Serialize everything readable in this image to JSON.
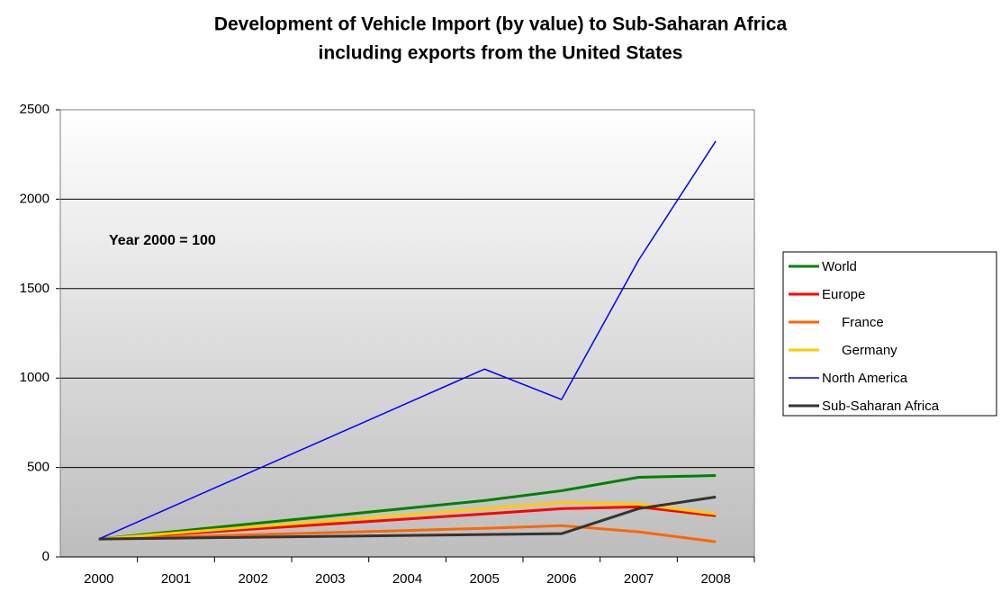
{
  "chart_data": {
    "type": "line",
    "title": [
      "Development of Vehicle Import (by value) to Sub-Saharan Africa",
      "including exports from the United States"
    ],
    "annotation": "Year 2000 = 100",
    "categories": [
      "2000",
      "2001",
      "2002",
      "2003",
      "2004",
      "2005",
      "2006",
      "2007",
      "2008"
    ],
    "series": [
      {
        "name": "World",
        "color": "#008000",
        "width": 3,
        "values": [
          100,
          143,
          186,
          229,
          272,
          315,
          370,
          445,
          455
        ]
      },
      {
        "name": "Europe",
        "color": "#ff0000",
        "width": 3,
        "values": [
          100,
          128,
          156,
          184,
          212,
          240,
          270,
          280,
          230
        ]
      },
      {
        "name": "France",
        "color": "#ff6600",
        "width": 3,
        "values": [
          100,
          112,
          124,
          136,
          148,
          160,
          175,
          140,
          85
        ]
      },
      {
        "name": "Germany",
        "color": "#ffcc00",
        "width": 3,
        "values": [
          100,
          134,
          168,
          202,
          236,
          270,
          305,
          295,
          240
        ]
      },
      {
        "name": "North America",
        "color": "#0000ff",
        "width": 1.5,
        "values": [
          100,
          290,
          480,
          670,
          860,
          1050,
          880,
          1660,
          2325
        ]
      },
      {
        "name": "Sub-Saharan Africa",
        "color": "#333333",
        "width": 3,
        "values": [
          100,
          105,
          110,
          115,
          120,
          125,
          130,
          270,
          335
        ]
      }
    ],
    "ylim": [
      0,
      2500
    ],
    "yticks": [
      0,
      500,
      1000,
      1500,
      2000,
      2500
    ],
    "grid": true,
    "legend": "right"
  }
}
